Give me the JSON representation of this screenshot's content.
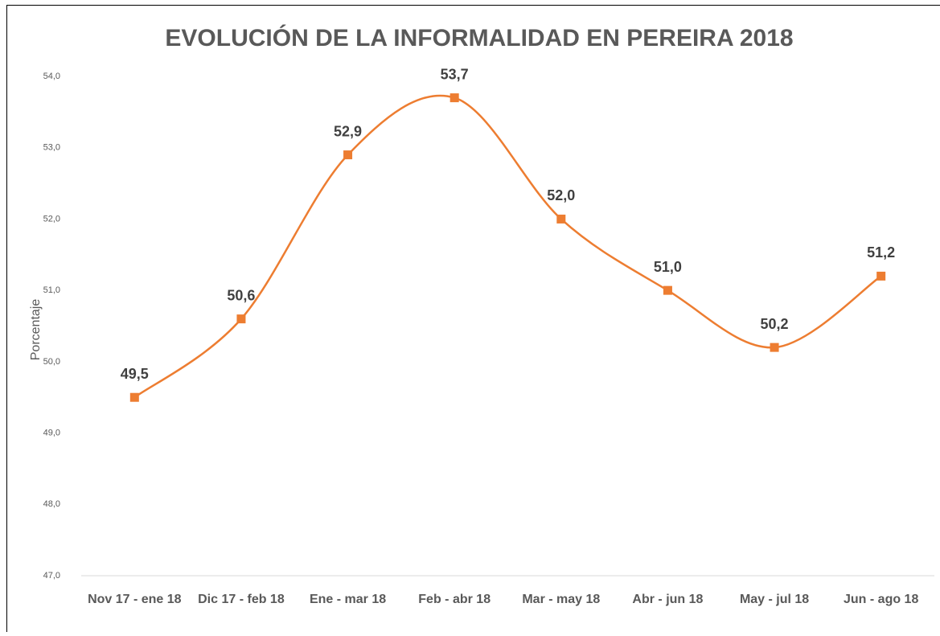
{
  "chart_data": {
    "type": "line",
    "title": "EVOLUCIÓN DE LA INFORMALIDAD EN PEREIRA 2018",
    "y_label": "Porcentaje",
    "categories": [
      "Nov 17 - ene 18",
      "Dic 17 - feb 18",
      "Ene - mar 18",
      "Feb - abr 18",
      "Mar - may 18",
      "Abr - jun 18",
      "May - jul 18",
      "Jun - ago 18"
    ],
    "values": [
      49.5,
      50.6,
      52.9,
      53.7,
      52.0,
      51.0,
      50.2,
      51.2
    ],
    "value_labels": [
      "49,5",
      "50,6",
      "52,9",
      "53,7",
      "52,0",
      "51,0",
      "50,2",
      "51,2"
    ],
    "color": "#ed7d31",
    "smooth": true,
    "grid": false,
    "ylim": [
      47,
      54
    ],
    "yticks": [
      {
        "value": 47,
        "label": "47,0"
      },
      {
        "value": 48,
        "label": "48,0"
      },
      {
        "value": 49,
        "label": "49,0"
      },
      {
        "value": 50,
        "label": "50,0"
      },
      {
        "value": 51,
        "label": "51,0"
      },
      {
        "value": 52,
        "label": "52,0"
      },
      {
        "value": 53,
        "label": "53,0"
      },
      {
        "value": 54,
        "label": "54,0"
      }
    ]
  }
}
